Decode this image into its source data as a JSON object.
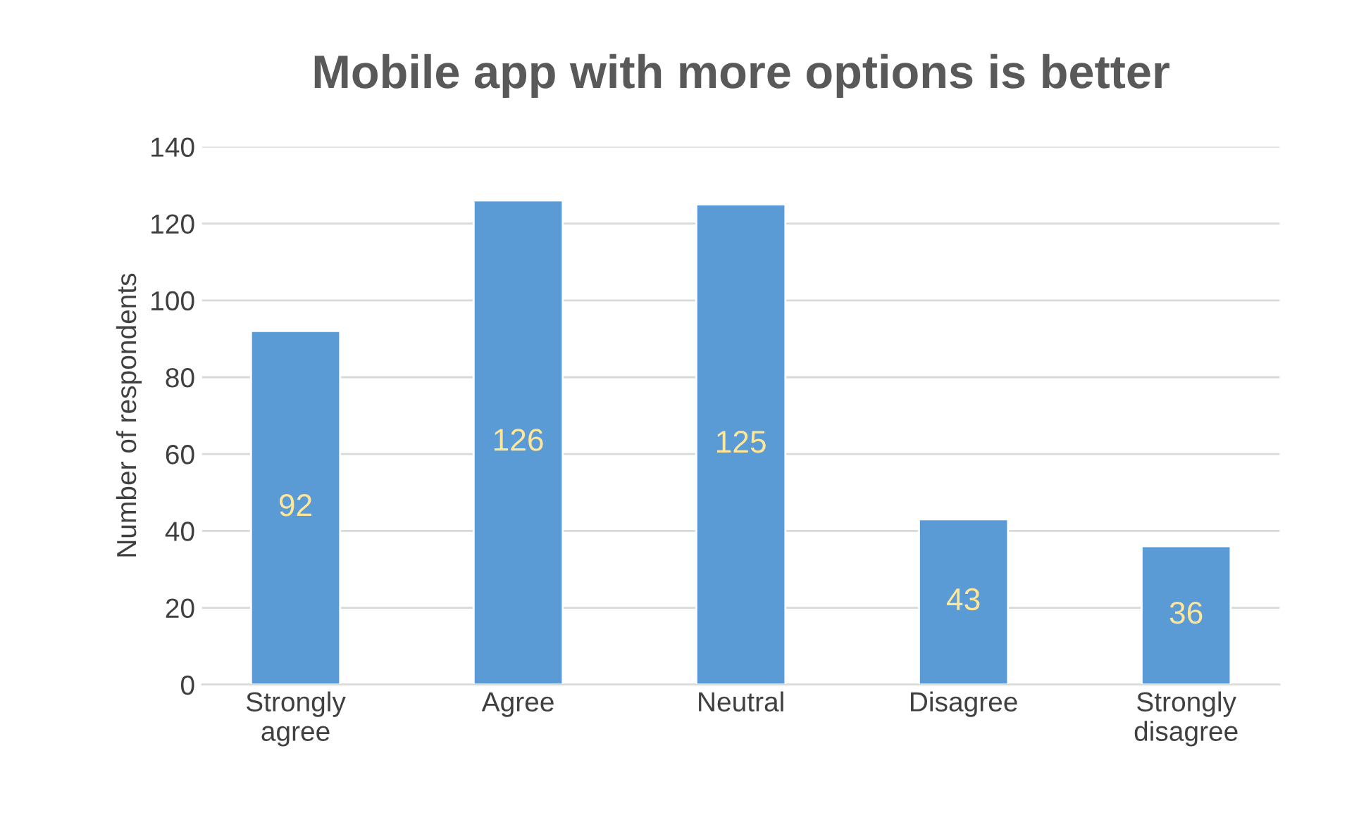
{
  "chart_data": {
    "type": "bar",
    "title": "Mobile app with more options is better",
    "ylabel": "Number of respondents",
    "categories": [
      "Strongly\nagree",
      "Agree",
      "Neutral",
      "Disagree",
      "Strongly\ndisagree"
    ],
    "values": [
      92,
      126,
      125,
      43,
      36
    ],
    "color": "#5b9bd5",
    "ylim": [
      0,
      140
    ],
    "yticks": [
      0,
      20,
      40,
      60,
      80,
      100,
      120,
      140
    ],
    "grid": "y",
    "data_labels": true
  }
}
